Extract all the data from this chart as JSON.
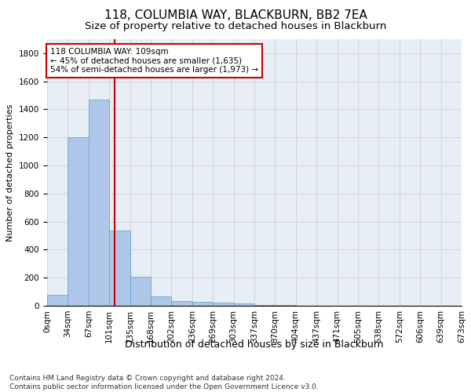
{
  "title1": "118, COLUMBIA WAY, BLACKBURN, BB2 7EA",
  "title2": "Size of property relative to detached houses in Blackburn",
  "xlabel": "Distribution of detached houses by size in Blackburn",
  "ylabel": "Number of detached properties",
  "footnote": "Contains HM Land Registry data © Crown copyright and database right 2024.\nContains public sector information licensed under the Open Government Licence v3.0.",
  "bar_values": [
    80,
    1200,
    1470,
    535,
    205,
    65,
    35,
    30,
    25,
    15,
    5,
    3,
    2,
    1,
    0,
    0,
    0,
    0,
    0,
    0
  ],
  "bin_edges": [
    0,
    33.65,
    67.3,
    100.95,
    134.6,
    168.25,
    201.9,
    235.55,
    269.2,
    302.85,
    336.5,
    370.15,
    403.8,
    437.45,
    471.1,
    504.75,
    538.4,
    572.05,
    605.7,
    639.35,
    673.0
  ],
  "tick_labels": [
    "0sqm",
    "34sqm",
    "67sqm",
    "101sqm",
    "135sqm",
    "168sqm",
    "202sqm",
    "236sqm",
    "269sqm",
    "303sqm",
    "337sqm",
    "370sqm",
    "404sqm",
    "437sqm",
    "471sqm",
    "505sqm",
    "538sqm",
    "572sqm",
    "606sqm",
    "639sqm",
    "673sqm"
  ],
  "bar_color": "#aec6e8",
  "bar_edge_color": "#5a9fd4",
  "redline_x": 109,
  "annotation_text": "118 COLUMBIA WAY: 109sqm\n← 45% of detached houses are smaller (1,635)\n54% of semi-detached houses are larger (1,973) →",
  "annotation_box_color": "#ffffff",
  "annotation_box_edge": "#cc0000",
  "redline_color": "#cc0000",
  "ylim": [
    0,
    1900
  ],
  "yticks": [
    0,
    200,
    400,
    600,
    800,
    1000,
    1200,
    1400,
    1600,
    1800
  ],
  "grid_color": "#cccccc",
  "bg_color": "#e8eef5",
  "title1_fontsize": 11,
  "title2_fontsize": 9.5,
  "xlabel_fontsize": 9,
  "ylabel_fontsize": 8,
  "tick_fontsize": 7.5,
  "annot_fontsize": 7.5,
  "footnote_fontsize": 6.5
}
